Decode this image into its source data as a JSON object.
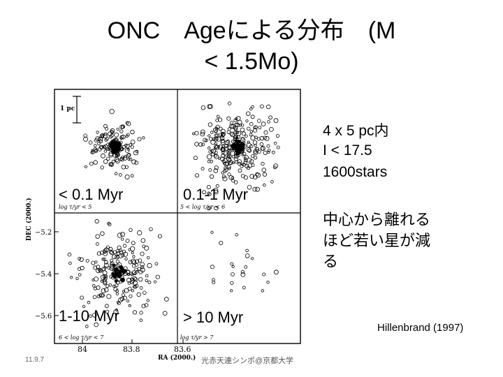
{
  "title": {
    "line1_a": "ONC",
    "line1_b": "Ageによる分布　(M",
    "line2": "< 1.5Mo)"
  },
  "figure": {
    "scale_label": "1 pc",
    "y_axis_label": "DEC (2000.)",
    "x_axis_label": "RA (2000.)",
    "y_ticks": [
      "−5.2",
      "−5.4",
      "−5.6"
    ],
    "x_ticks": [
      "84",
      "83.8",
      "83.6"
    ],
    "small_labels": [
      "log τ/yr < 5",
      "5 < log τ/yr < 6",
      "6 < log τ/yr < 7",
      "log τ/yr > 7"
    ],
    "panels": [
      "< 0.1 Myr",
      "0.1-1 Myr",
      "1-10 Myr",
      "> 10 Myr"
    ]
  },
  "notes": {
    "region": "4 x 5 pc内",
    "mag": "I < 17.5",
    "count": "1600stars",
    "jp_line1": "中心から離れる",
    "jp_line2": "ほど若い星が減",
    "jp_line3": "る"
  },
  "reference": "Hillenbrand (1997)",
  "footer": {
    "date": "11.9.7",
    "center": "光赤天連シンポ@京都大学"
  }
}
